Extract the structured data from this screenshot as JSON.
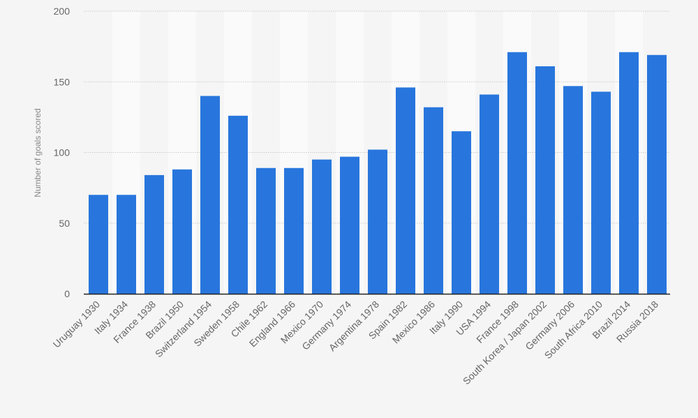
{
  "chart_data": {
    "type": "bar",
    "title": "",
    "xlabel": "",
    "ylabel": "Number of goals scored",
    "ylim": [
      0,
      200
    ],
    "yticks": [
      0,
      50,
      100,
      150,
      200
    ],
    "grid": true,
    "legend": "none",
    "categories": [
      "Uruguay 1930",
      "Italy 1934",
      "France 1938",
      "Brazil 1950",
      "Switzerland 1954",
      "Sweden 1958",
      "Chile 1962",
      "England 1966",
      "Mexico 1970",
      "Germany 1974",
      "Argentina 1978",
      "Spain 1982",
      "Mexico 1986",
      "Italy 1990",
      "USA 1994",
      "France 1998",
      "South Korea / Japan 2002",
      "Germany 2006",
      "South Africa 2010",
      "Brazil 2014",
      "Russia 2018"
    ],
    "values": [
      70,
      70,
      84,
      88,
      140,
      126,
      89,
      89,
      95,
      97,
      102,
      146,
      132,
      115,
      141,
      171,
      161,
      147,
      143,
      171,
      169
    ],
    "colors": {
      "bar": "#2876dd",
      "background": "#f5f5f5",
      "band": "#fafafa",
      "grid": "#cccccc",
      "axis": "#222222"
    }
  }
}
